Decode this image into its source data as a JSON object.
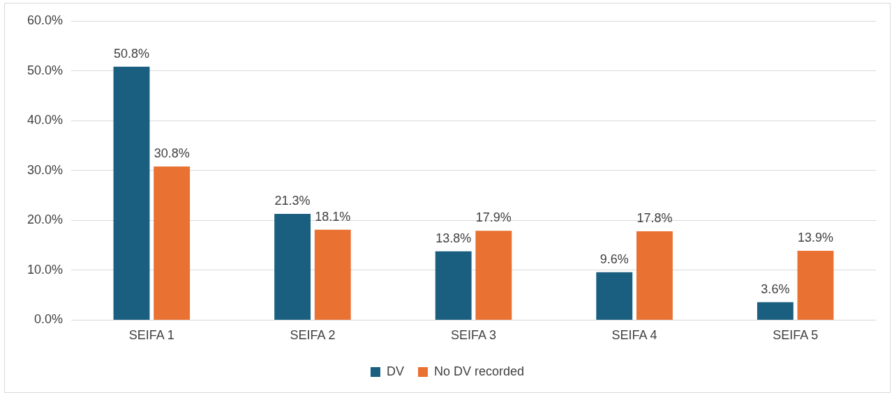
{
  "chart_data": {
    "type": "bar",
    "categories": [
      "SEIFA 1",
      "SEIFA 2",
      "SEIFA 3",
      "SEIFA 4",
      "SEIFA 5"
    ],
    "series": [
      {
        "name": "DV",
        "color": "#1a5e80",
        "values": [
          50.8,
          21.3,
          13.8,
          9.6,
          3.6
        ],
        "value_labels": [
          "50.8%",
          "21.3%",
          "13.8%",
          "9.6%",
          "3.6%"
        ]
      },
      {
        "name": "No DV recorded",
        "color": "#e97132",
        "values": [
          30.8,
          18.1,
          17.9,
          17.8,
          13.9
        ],
        "value_labels": [
          "30.8%",
          "18.1%",
          "17.9%",
          "17.8%",
          "13.9%"
        ]
      }
    ],
    "ylim": [
      0,
      60
    ],
    "yticks": [
      {
        "value": 0,
        "label": "0.0%"
      },
      {
        "value": 10,
        "label": "10.0%"
      },
      {
        "value": 20,
        "label": "20.0%"
      },
      {
        "value": 30,
        "label": "30.0%"
      },
      {
        "value": 40,
        "label": "40.0%"
      },
      {
        "value": 50,
        "label": "50.0%"
      },
      {
        "value": 60,
        "label": "60.0%"
      }
    ],
    "grid": "y",
    "legend": "bottom"
  }
}
